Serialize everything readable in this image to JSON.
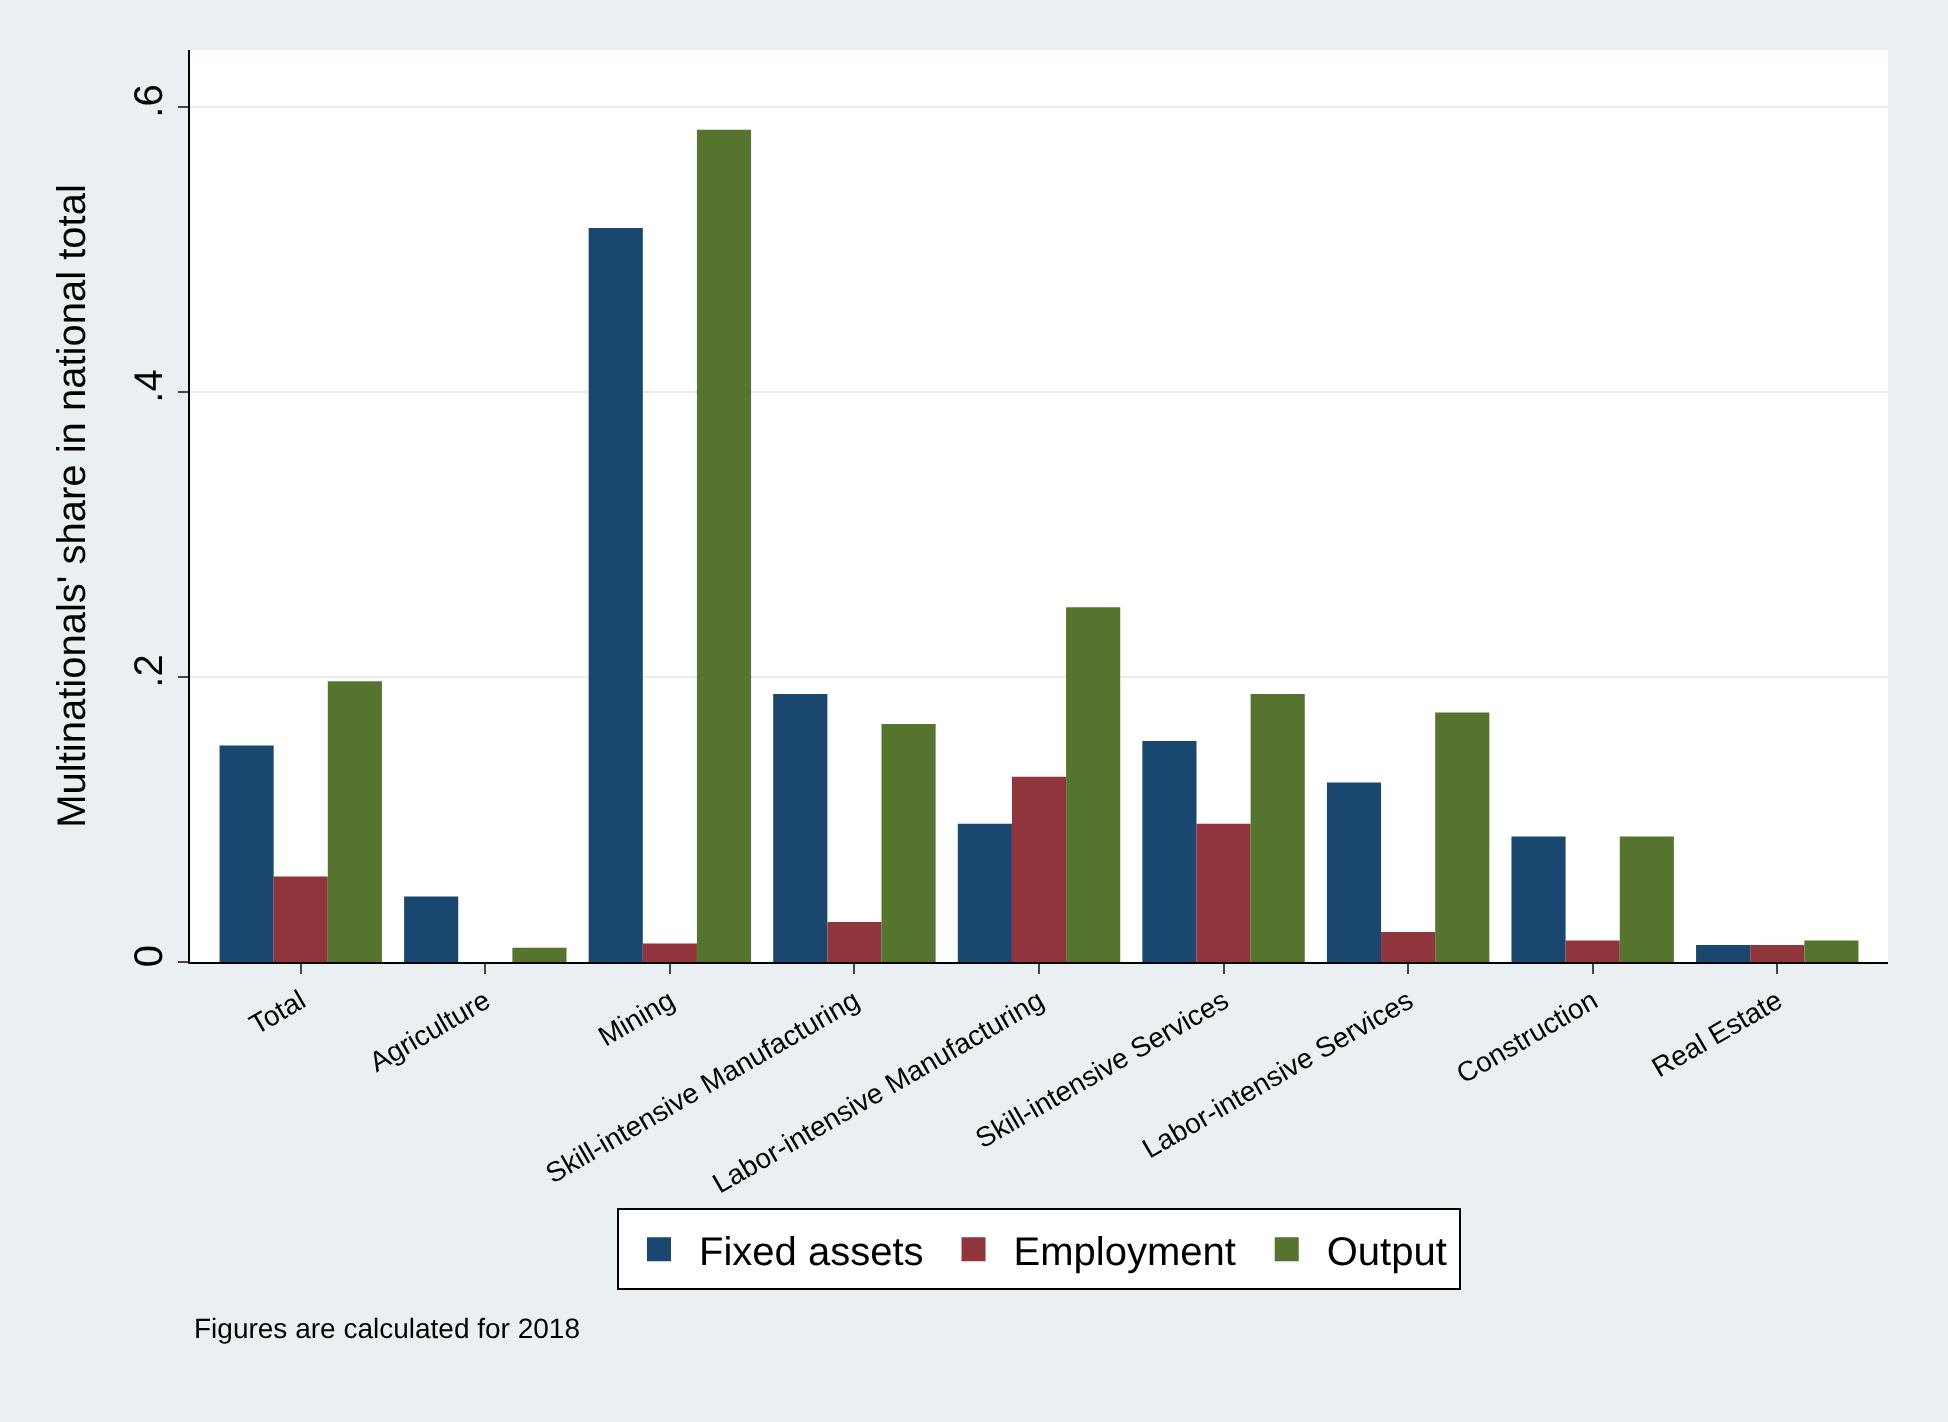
{
  "chart_data": {
    "type": "bar",
    "ylabel": "Multinationals' share in national total",
    "categories": [
      "Total",
      "Agriculture",
      "Mining",
      "Skill-intensive Manufacturing",
      "Labor-intensive Manufacturing",
      "Skill-intensive Services",
      "Labor-intensive Services",
      "Construction",
      "Real Estate"
    ],
    "series": [
      {
        "name": "Fixed assets",
        "color": "#1a476f",
        "values": [
          0.152,
          0.046,
          0.515,
          0.188,
          0.097,
          0.155,
          0.126,
          0.088,
          0.012
        ]
      },
      {
        "name": "Employment",
        "color": "#90353b",
        "values": [
          0.06,
          0,
          0.013,
          0.028,
          0.13,
          0.097,
          0.021,
          0.015,
          0.012
        ]
      },
      {
        "name": "Output",
        "color": "#55752f",
        "values": [
          0.197,
          0.01,
          0.584,
          0.167,
          0.249,
          0.188,
          0.175,
          0.088,
          0.015
        ]
      }
    ],
    "ylim": [
      0,
      0.64
    ],
    "yticks": [
      {
        "value": 0,
        "label": "0"
      },
      {
        "value": 0.2,
        "label": ".2"
      },
      {
        "value": 0.4,
        "label": ".4"
      },
      {
        "value": 0.6,
        "label": ".6"
      }
    ],
    "grid": "y",
    "legend": "bottom",
    "annotations": [
      "Figures are calculated for 2018"
    ]
  }
}
